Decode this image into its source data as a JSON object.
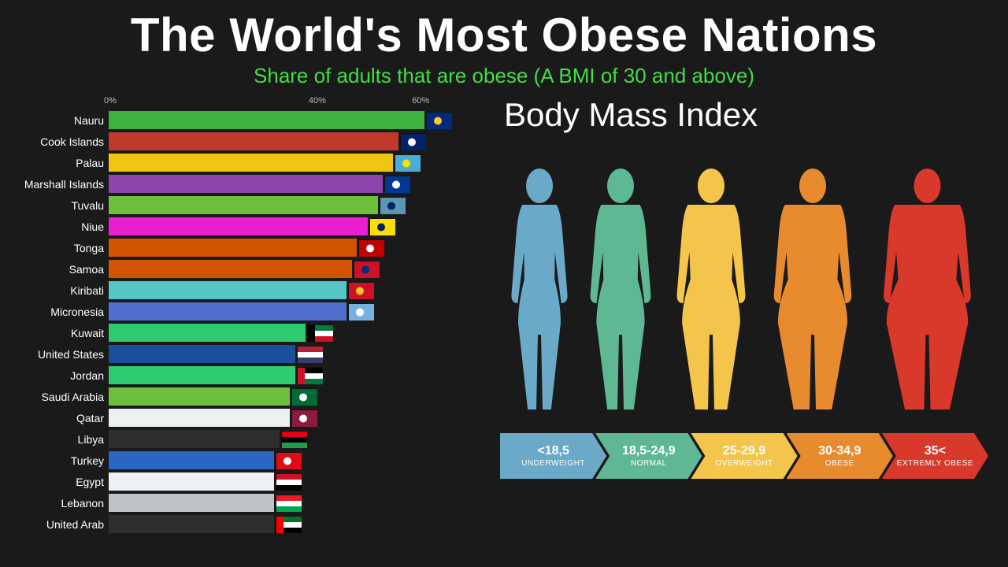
{
  "title": "The World's Most Obese Nations",
  "subtitle": "Share of adults that are obese (A BMI of 30 and above)",
  "background_color": "#1a1a1a",
  "chart": {
    "max": 70,
    "axis_ticks": [
      {
        "label": "0%",
        "value": 0
      },
      {
        "label": "40%",
        "value": 40
      },
      {
        "label": "60%",
        "value": 60
      }
    ],
    "rows": [
      {
        "country": "Nauru",
        "value": 61,
        "bar_color": "#3db13d",
        "flag_colors": [
          "#002b7f",
          "#ffc726"
        ]
      },
      {
        "country": "Cook Islands",
        "value": 56,
        "bar_color": "#c0392b",
        "flag_colors": [
          "#012169",
          "#ffffff"
        ]
      },
      {
        "country": "Palau",
        "value": 55,
        "bar_color": "#f1c40f",
        "flag_colors": [
          "#4aadd6",
          "#ffde00"
        ]
      },
      {
        "country": "Marshall Islands",
        "value": 53,
        "bar_color": "#8e44ad",
        "flag_colors": [
          "#003893",
          "#ffffff"
        ]
      },
      {
        "country": "Tuvalu",
        "value": 52,
        "bar_color": "#6fbf3f",
        "flag_colors": [
          "#5b97b1",
          "#012169"
        ]
      },
      {
        "country": "Niue",
        "value": 50,
        "bar_color": "#e91ecf",
        "flag_colors": [
          "#fedd00",
          "#012169"
        ]
      },
      {
        "country": "Tonga",
        "value": 48,
        "bar_color": "#d35400",
        "flag_colors": [
          "#c10000",
          "#ffffff"
        ]
      },
      {
        "country": "Samoa",
        "value": 47,
        "bar_color": "#d35400",
        "flag_colors": [
          "#ce1126",
          "#002b7f"
        ]
      },
      {
        "country": "Kiribati",
        "value": 46,
        "bar_color": "#56c5c5",
        "flag_colors": [
          "#ce1126",
          "#ffc726"
        ]
      },
      {
        "country": "Micronesia",
        "value": 46,
        "bar_color": "#4f6fd1",
        "flag_colors": [
          "#75b2dd",
          "#ffffff"
        ]
      },
      {
        "country": "Kuwait",
        "value": 38,
        "bar_color": "#2ecc71",
        "flag_colors": [
          "#007a3d",
          "#ffffff",
          "#ce1126",
          "#000000"
        ]
      },
      {
        "country": "United States",
        "value": 36,
        "bar_color": "#1b4f9c",
        "flag_colors": [
          "#b22234",
          "#ffffff",
          "#3c3b6e"
        ]
      },
      {
        "country": "Jordan",
        "value": 36,
        "bar_color": "#2ecc71",
        "flag_colors": [
          "#000000",
          "#ffffff",
          "#007a3d",
          "#ce1126"
        ]
      },
      {
        "country": "Saudi Arabia",
        "value": 35,
        "bar_color": "#6fbf3f",
        "flag_colors": [
          "#006c35",
          "#ffffff"
        ]
      },
      {
        "country": "Qatar",
        "value": 35,
        "bar_color": "#ecf0f1",
        "flag_colors": [
          "#8d1b3d",
          "#ffffff"
        ]
      },
      {
        "country": "Libya",
        "value": 33,
        "bar_color": "#2e2e2e",
        "flag_colors": [
          "#e70013",
          "#000000",
          "#239e46"
        ]
      },
      {
        "country": "Turkey",
        "value": 32,
        "bar_color": "#2b66c4",
        "flag_colors": [
          "#e30a17",
          "#ffffff"
        ]
      },
      {
        "country": "Egypt",
        "value": 32,
        "bar_color": "#ecf0f1",
        "flag_colors": [
          "#ce1126",
          "#ffffff",
          "#000000"
        ]
      },
      {
        "country": "Lebanon",
        "value": 32,
        "bar_color": "#bdc3c7",
        "flag_colors": [
          "#ed1c24",
          "#ffffff",
          "#00a651"
        ]
      },
      {
        "country": "United Arab",
        "value": 32,
        "bar_color": "#2e2e2e",
        "flag_colors": [
          "#00732f",
          "#ffffff",
          "#000000",
          "#ff0000"
        ]
      }
    ]
  },
  "bmi": {
    "title": "Body Mass Index",
    "silhouettes": [
      {
        "color": "#6aa9c7",
        "width": 60
      },
      {
        "color": "#5fb894",
        "width": 68
      },
      {
        "color": "#f3c64b",
        "width": 82
      },
      {
        "color": "#e88b2e",
        "width": 98
      },
      {
        "color": "#d9392b",
        "width": 115
      }
    ],
    "categories": [
      {
        "range": "<18,5",
        "label": "UNDERWEIGHT",
        "color": "#6aa9c7"
      },
      {
        "range": "18,5-24,9",
        "label": "NORMAL",
        "color": "#5fb894"
      },
      {
        "range": "25-29,9",
        "label": "OVERWEIGHT",
        "color": "#f3c64b"
      },
      {
        "range": "30-34,9",
        "label": "OBESE",
        "color": "#e88b2e"
      },
      {
        "range": "35<",
        "label": "EXTREMLY OBESE",
        "color": "#d9392b"
      }
    ]
  }
}
